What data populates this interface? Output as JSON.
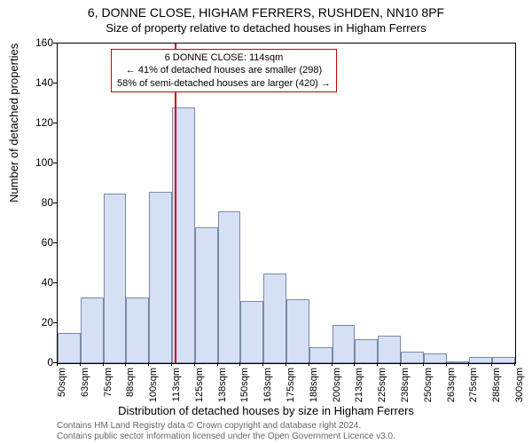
{
  "chart": {
    "type": "histogram",
    "title_main": "6, DONNE CLOSE, HIGHAM FERRERS, RUSHDEN, NN10 8PF",
    "title_sub": "Size of property relative to detached houses in Higham Ferrers",
    "ylabel": "Number of detached properties",
    "xlabel": "Distribution of detached houses by size in Higham Ferrers",
    "title_fontsize": 14,
    "subtitle_fontsize": 13,
    "axis_label_fontsize": 13,
    "tick_fontsize": 12,
    "background_color": "#ffffff",
    "axis_color": "#000000",
    "ylim": [
      0,
      160
    ],
    "ytick_step": 20,
    "yticks": [
      0,
      20,
      40,
      60,
      80,
      100,
      120,
      140,
      160
    ],
    "xticks": [
      "50sqm",
      "63sqm",
      "75sqm",
      "88sqm",
      "100sqm",
      "113sqm",
      "125sqm",
      "138sqm",
      "150sqm",
      "163sqm",
      "175sqm",
      "188sqm",
      "200sqm",
      "213sqm",
      "225sqm",
      "238sqm",
      "250sqm",
      "263sqm",
      "275sqm",
      "288sqm",
      "300sqm"
    ],
    "bars": {
      "color": "#d6e0f5",
      "border_color": "#7a8aa8",
      "values": [
        15,
        33,
        85,
        33,
        86,
        128,
        68,
        76,
        31,
        45,
        32,
        8,
        19,
        12,
        14,
        6,
        5,
        0,
        3,
        3
      ]
    },
    "marker": {
      "position_sqm": 114,
      "color": "#cc0000",
      "callout_lines": [
        "6 DONNE CLOSE: 114sqm",
        "← 41% of detached houses are smaller (298)",
        "58% of semi-detached houses are larger (420) →"
      ]
    },
    "footer_lines": [
      "Contains HM Land Registry data © Crown copyright and database right 2024.",
      "Contains public sector information licensed under the Open Government Licence v3.0."
    ]
  }
}
